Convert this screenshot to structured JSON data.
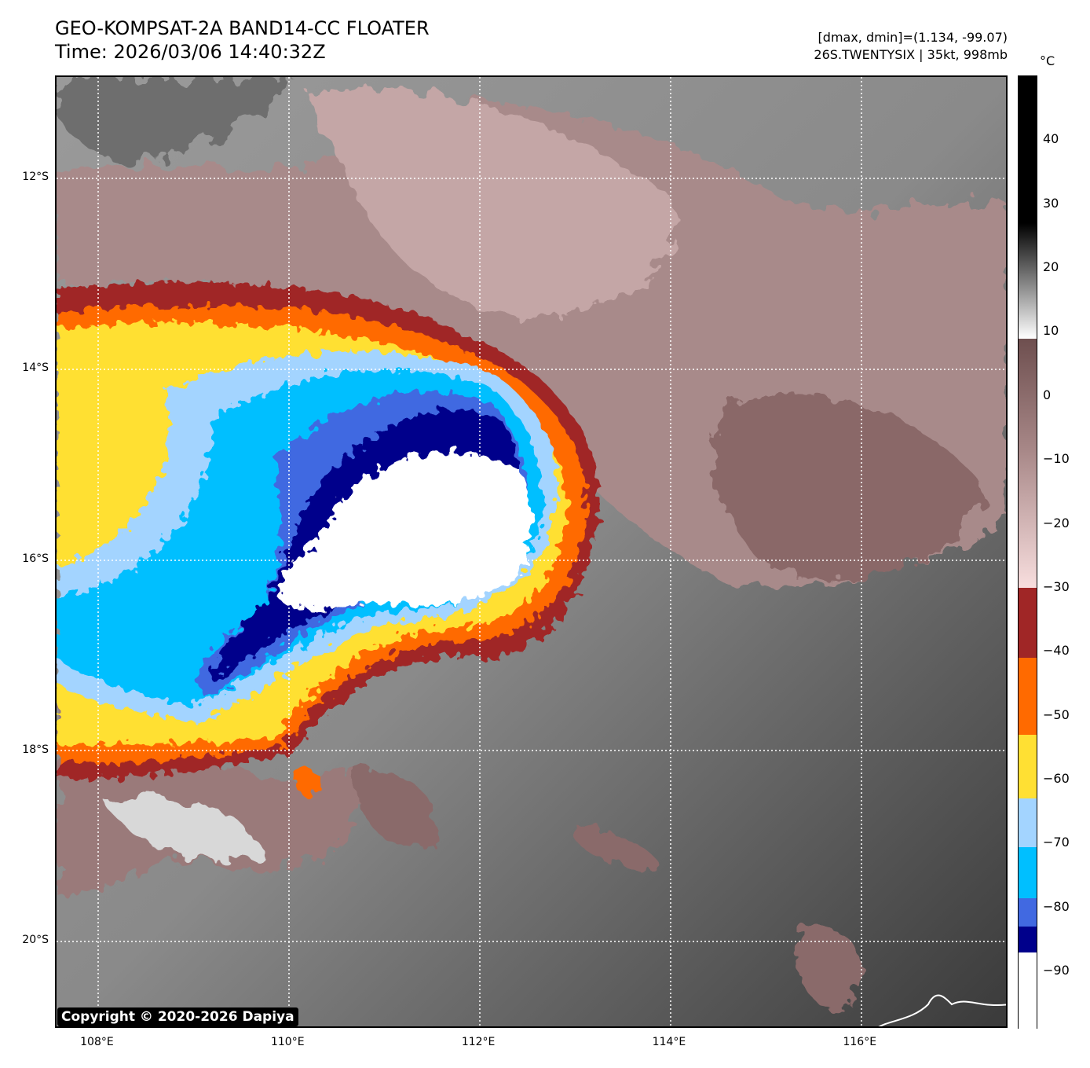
{
  "title": {
    "line1": "GEO-KOMPSAT-2A BAND14-CC FLOATER",
    "line2": "Time: 2026/03/06 14:40:32Z"
  },
  "info": {
    "line1": "[dmax, dmin]=(1.134, -99.07)",
    "line2": "26S.TWENTYSIX | 35kt, 998mb"
  },
  "colorbar": {
    "unit": "°C",
    "range": [
      -99.07,
      50
    ],
    "ticks": [
      "40",
      "30",
      "20",
      "10",
      "0",
      "−10",
      "−20",
      "−30",
      "−40",
      "−50",
      "−60",
      "−70",
      "−80",
      "−90"
    ],
    "tick_values": [
      40,
      30,
      20,
      10,
      0,
      -10,
      -20,
      -30,
      -40,
      -50,
      -60,
      -70,
      -80,
      -90
    ],
    "segments": [
      {
        "from": 50,
        "to": 27,
        "color": "#000000"
      },
      {
        "from": 27,
        "to": 9,
        "color": "gradient-black-white"
      },
      {
        "from": 9,
        "to": -30,
        "color": "gradient-brown-pink"
      },
      {
        "from": -30,
        "to": -41,
        "color": "#a02626"
      },
      {
        "from": -41,
        "to": -53,
        "color": "#ff6a00"
      },
      {
        "from": -53,
        "to": -63,
        "color": "#ffe033"
      },
      {
        "from": -63,
        "to": -70.5,
        "color": "#a3d4ff"
      },
      {
        "from": -70.5,
        "to": -78.5,
        "color": "#00bfff"
      },
      {
        "from": -78.5,
        "to": -83,
        "color": "#4169e1"
      },
      {
        "from": -83,
        "to": -87,
        "color": "#00008b"
      },
      {
        "from": -87,
        "to": -99.07,
        "color": "#ffffff"
      }
    ]
  },
  "axes": {
    "lat_labels": [
      "12°S",
      "14°S",
      "16°S",
      "18°S",
      "20°S"
    ],
    "lat_values": [
      -12,
      -14,
      -16,
      -18,
      -20
    ],
    "lon_labels": [
      "108°E",
      "110°E",
      "112°E",
      "114°E",
      "116°E"
    ],
    "lon_values": [
      108,
      110,
      112,
      114,
      116
    ],
    "lon_range": [
      107.56,
      117.55
    ],
    "lat_range": [
      -10.93,
      -20.91
    ]
  },
  "copyright": "Copyright © 2020-2026 Dapiya"
}
